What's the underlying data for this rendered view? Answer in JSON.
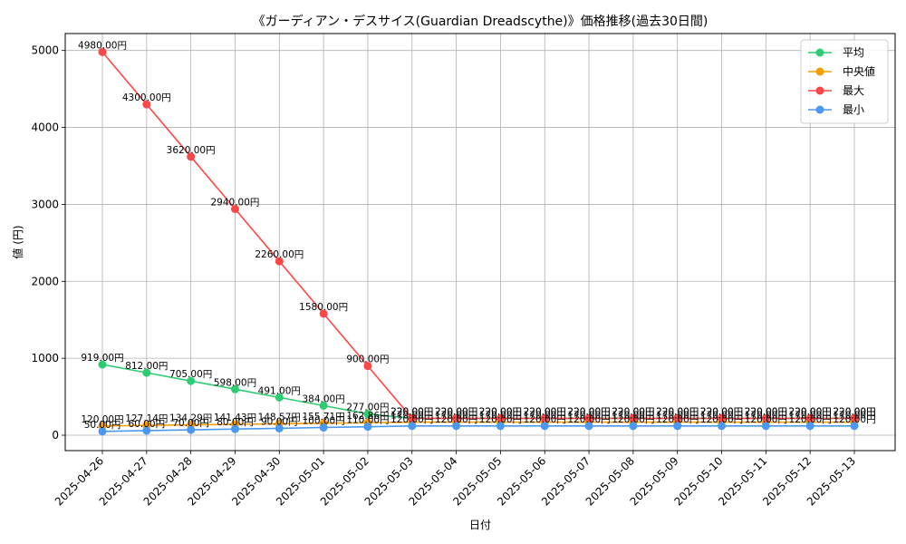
{
  "chart_data": {
    "type": "line",
    "title": "《ガーディアン・デスサイス(Guardian Dreadscythe)》価格推移(過去30日間)",
    "xlabel": "日付",
    "ylabel": "値 (円)",
    "ylim": [
      -200,
      5220
    ],
    "yticks": [
      0,
      1000,
      2000,
      3000,
      4000,
      5000
    ],
    "grid": true,
    "legend_position": "top-right",
    "categories": [
      "2025-04-26",
      "2025-04-27",
      "2025-04-28",
      "2025-04-29",
      "2025-04-30",
      "2025-05-01",
      "2025-05-02",
      "2025-05-03",
      "2025-05-04",
      "2025-05-05",
      "2025-05-06",
      "2025-05-07",
      "2025-05-08",
      "2025-05-09",
      "2025-05-10",
      "2025-05-11",
      "2025-05-12",
      "2025-05-13"
    ],
    "series": [
      {
        "name": "平均",
        "color": "#2ecc71",
        "values": [
          919,
          812,
          705,
          598,
          491,
          384,
          277,
          220,
          220,
          220,
          220,
          220,
          220,
          220,
          220,
          220,
          220,
          220
        ],
        "labels": [
          "919.00円",
          "812.00円",
          "705.00円",
          "598.00円",
          "491.00円",
          "384.00円",
          "277.00円",
          "220.00円",
          "220.00円",
          "220.00円",
          "220.00円",
          "220.00円",
          "220.00円",
          "220.00円",
          "220.00円",
          "220.00円",
          "220.00円",
          "220.00円"
        ]
      },
      {
        "name": "中央値",
        "color": "#f5a000",
        "values": [
          120,
          127.14,
          134.29,
          141.43,
          148.57,
          155.71,
          162.86,
          170,
          170,
          170,
          170,
          170,
          170,
          170,
          170,
          170,
          170,
          170
        ],
        "labels": [
          "120.00円",
          "127.14円",
          "134.29円",
          "141.43円",
          "148.57円",
          "155.71円",
          "162.86円",
          "170.00円",
          "170.00円",
          "170.00円",
          "170.00円",
          "170.00円",
          "170.00円",
          "170.00円",
          "170.00円",
          "170.00円",
          "170.00円",
          "170.00円"
        ]
      },
      {
        "name": "最大",
        "color": "#ff4747",
        "values": [
          4980,
          4300,
          3620,
          2940,
          2260,
          1580,
          900,
          220,
          220,
          220,
          220,
          220,
          220,
          220,
          220,
          220,
          220,
          220
        ],
        "labels": [
          "4980.00円",
          "4300.00円",
          "3620.00円",
          "2940.00円",
          "2260.00円",
          "1580.00円",
          "900.00円",
          "220.00円",
          "220.00円",
          "220.00円",
          "220.00円",
          "220.00円",
          "220.00円",
          "220.00円",
          "220.00円",
          "220.00円",
          "220.00円",
          "220.00円"
        ]
      },
      {
        "name": "最小",
        "color": "#4a98f2",
        "values": [
          50,
          60,
          70,
          80,
          90,
          100,
          110,
          120,
          120,
          120,
          120,
          120,
          120,
          120,
          120,
          120,
          120,
          120
        ],
        "labels": [
          "50.00円",
          "60.00円",
          "70.00円",
          "80.00円",
          "90.00円",
          "100.00円",
          "110.00円",
          "120.00円",
          "120.00円",
          "120.00円",
          "120.00円",
          "120.00円",
          "120.00円",
          "120.00円",
          "120.00円",
          "120.00円",
          "120.00円",
          "120.00円"
        ]
      }
    ]
  }
}
